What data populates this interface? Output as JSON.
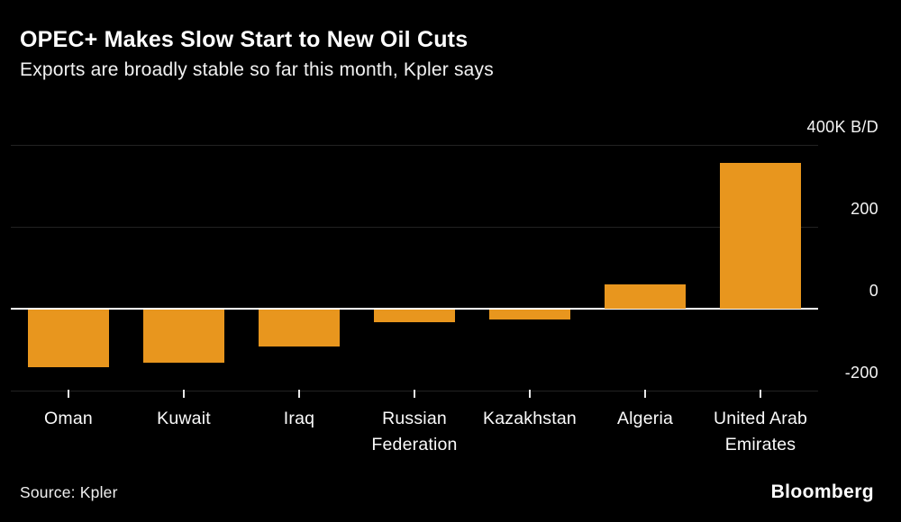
{
  "header": {
    "title": "OPEC+ Makes Slow Start to New Oil Cuts",
    "subtitle": "Exports are broadly stable so far this month, Kpler says"
  },
  "chart_data": {
    "type": "bar",
    "title": "OPEC+ Makes Slow Start to New Oil Cuts",
    "subtitle": "Exports are broadly stable so far this month, Kpler says",
    "unit": "K B/D",
    "categories": [
      "Oman",
      "Kuwait",
      "Iraq",
      "Russian Federation",
      "Kazakhstan",
      "Algeria",
      "United Arab Emirates"
    ],
    "values": [
      -140,
      -130,
      -90,
      -30,
      -25,
      60,
      355
    ],
    "yticks": [
      {
        "value": 400,
        "label": "400K B/D"
      },
      {
        "value": 200,
        "label": "200"
      },
      {
        "value": 0,
        "label": "0"
      },
      {
        "value": -200,
        "label": "-200"
      }
    ],
    "ylim": [
      -260,
      460
    ],
    "grid": "faint-horizontal",
    "legend": "none",
    "xlabel": "",
    "ylabel": "K B/D",
    "bar_color": "#E8961E"
  },
  "footer": {
    "source": "Source: Kpler",
    "brand": "Bloomberg"
  },
  "colors": {
    "background": "#000000",
    "bar": "#E8961E",
    "axis_line": "#FFFFFF",
    "text": "#FFFFFF"
  }
}
